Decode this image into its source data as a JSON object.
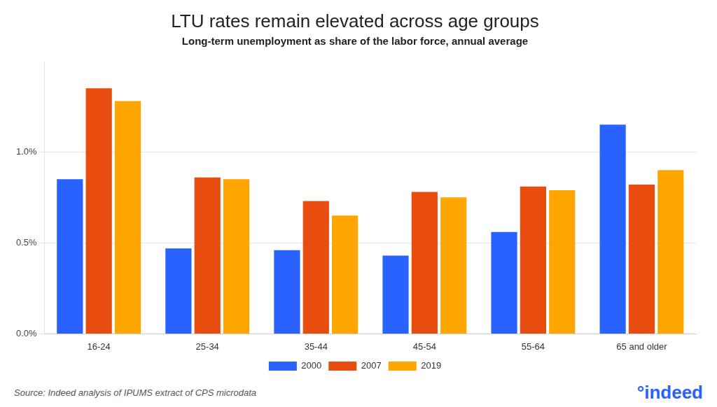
{
  "chart_data": {
    "type": "bar",
    "title": "LTU rates remain elevated across age groups",
    "subtitle": "Long-term unemployment as share of the labor force, annual average",
    "categories": [
      "16-24",
      "25-34",
      "35-44",
      "45-54",
      "55-64",
      "65 and older"
    ],
    "series": [
      {
        "name": "2000",
        "color": "#2962FF",
        "values": [
          0.0085,
          0.0047,
          0.0046,
          0.0043,
          0.0056,
          0.0115
        ]
      },
      {
        "name": "2007",
        "color": "#E84C0E",
        "values": [
          0.0135,
          0.0086,
          0.0073,
          0.0078,
          0.0081,
          0.0082
        ]
      },
      {
        "name": "2019",
        "color": "#FFA500",
        "values": [
          0.0128,
          0.0085,
          0.0065,
          0.0075,
          0.0079,
          0.009
        ]
      }
    ],
    "ylim": [
      0,
      0.015
    ],
    "yticks": [
      {
        "value": 0.0,
        "label": "0.0%"
      },
      {
        "value": 0.005,
        "label": "0.5%"
      },
      {
        "value": 0.01,
        "label": "1.0%"
      }
    ],
    "grid": true,
    "legend": "bottom",
    "annotations": [
      {
        "text": "Source: Indeed analysis of IPUMS extract of CPS microdata"
      },
      {
        "text": "°indeed",
        "color": "#2962FF"
      }
    ]
  }
}
